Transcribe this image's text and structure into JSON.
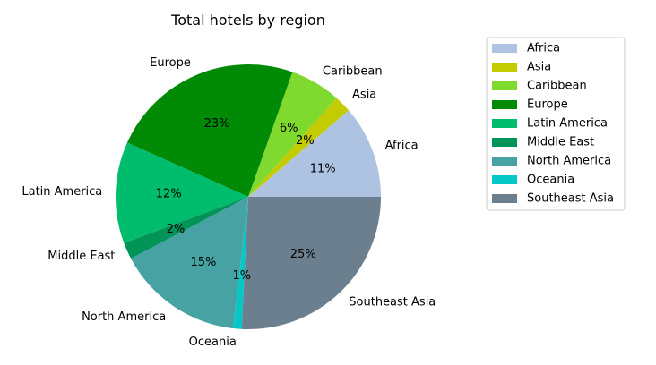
{
  "chart_data": {
    "type": "pie",
    "title": "Total hotels by region",
    "legend_position": "top-right",
    "slices": [
      {
        "label": "Africa",
        "value": 11,
        "pct_label": "11%",
        "color": "#aec3e2"
      },
      {
        "label": "Asia",
        "value": 2,
        "pct_label": "2%",
        "color": "#c3cc00"
      },
      {
        "label": "Caribbean",
        "value": 6,
        "pct_label": "6%",
        "color": "#80d92e"
      },
      {
        "label": "Europe",
        "value": 23,
        "pct_label": "23%",
        "color": "#008a05"
      },
      {
        "label": "Latin America",
        "value": 12,
        "pct_label": "12%",
        "color": "#00bd6e"
      },
      {
        "label": "Middle East",
        "value": 2,
        "pct_label": "2%",
        "color": "#009458"
      },
      {
        "label": "North America",
        "value": 15,
        "pct_label": "15%",
        "color": "#47a3a3"
      },
      {
        "label": "Oceania",
        "value": 1,
        "pct_label": "1%",
        "color": "#05c8c6"
      },
      {
        "label": "Southeast Asia",
        "value": 25,
        "pct_label": "25%",
        "color": "#6b7f8f"
      }
    ]
  }
}
